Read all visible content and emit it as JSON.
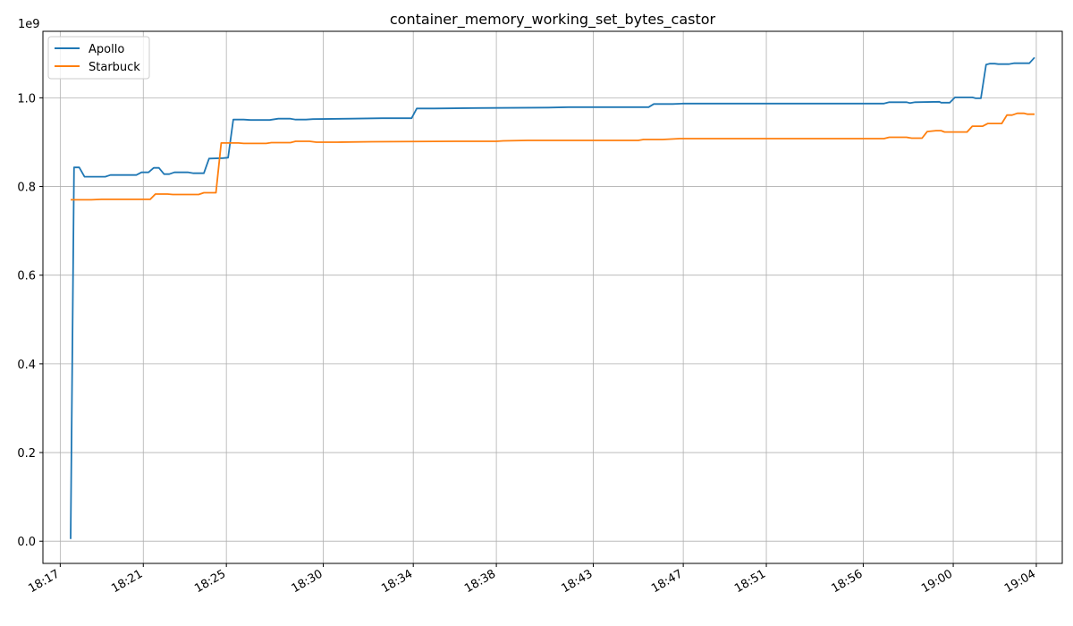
{
  "chart_data": {
    "type": "line",
    "title": "container_memory_working_set_bytes_castor",
    "xlabel": "",
    "ylabel": "",
    "y_offset_label": "1e9",
    "y_scale": 1000000000,
    "ylim": [
      -0.05,
      1.15
    ],
    "y_ticks": [
      0.0,
      0.2,
      0.4,
      0.6,
      0.8,
      1.0
    ],
    "y_tick_labels": [
      "0.0",
      "0.2",
      "0.4",
      "0.6",
      "0.8",
      "1.0"
    ],
    "xlim": [
      "18:16:10",
      "19:05:15"
    ],
    "x_ticks": [
      "18:17:00",
      "18:21:00",
      "18:25:00",
      "18:29:40",
      "18:34:00",
      "18:38:00",
      "18:42:40",
      "18:47:00",
      "18:51:00",
      "18:55:40",
      "19:00:00",
      "19:04:00"
    ],
    "x_tick_labels": [
      "18:17",
      "18:21",
      "18:25",
      "18:30",
      "18:34",
      "18:38",
      "18:43",
      "18:47",
      "18:51",
      "18:56",
      "19:00",
      "19:04"
    ],
    "grid": true,
    "legend_position": "top-left",
    "series": [
      {
        "name": "Apollo",
        "color": "#1f77b4",
        "points": [
          [
            "18:17:30",
            0.005
          ],
          [
            "18:17:40",
            0.843
          ],
          [
            "18:17:55",
            0.843
          ],
          [
            "18:18:10",
            0.822
          ],
          [
            "18:19:10",
            0.822
          ],
          [
            "18:19:25",
            0.826
          ],
          [
            "18:20:40",
            0.826
          ],
          [
            "18:20:55",
            0.832
          ],
          [
            "18:21:15",
            0.832
          ],
          [
            "18:21:30",
            0.842
          ],
          [
            "18:21:45",
            0.842
          ],
          [
            "18:22:00",
            0.828
          ],
          [
            "18:22:15",
            0.828
          ],
          [
            "18:22:30",
            0.832
          ],
          [
            "18:23:10",
            0.832
          ],
          [
            "18:23:25",
            0.83
          ],
          [
            "18:23:55",
            0.83
          ],
          [
            "18:24:10",
            0.863
          ],
          [
            "18:24:50",
            0.864
          ],
          [
            "18:25:05",
            0.865
          ],
          [
            "18:25:20",
            0.951
          ],
          [
            "18:25:50",
            0.951
          ],
          [
            "18:26:10",
            0.95
          ],
          [
            "18:27:05",
            0.95
          ],
          [
            "18:27:30",
            0.953
          ],
          [
            "18:28:05",
            0.953
          ],
          [
            "18:28:20",
            0.951
          ],
          [
            "18:28:50",
            0.951
          ],
          [
            "18:29:10",
            0.952
          ],
          [
            "18:31:00",
            0.953
          ],
          [
            "18:32:30",
            0.954
          ],
          [
            "18:33:55",
            0.954
          ],
          [
            "18:34:10",
            0.976
          ],
          [
            "18:35:00",
            0.976
          ],
          [
            "18:37:00",
            0.977
          ],
          [
            "18:40:30",
            0.978
          ],
          [
            "18:41:30",
            0.979
          ],
          [
            "18:45:20",
            0.979
          ],
          [
            "18:45:35",
            0.986
          ],
          [
            "18:46:30",
            0.986
          ],
          [
            "18:47:00",
            0.987
          ],
          [
            "18:56:40",
            0.987
          ],
          [
            "18:56:55",
            0.99
          ],
          [
            "18:57:45",
            0.99
          ],
          [
            "18:57:55",
            0.988
          ],
          [
            "18:58:10",
            0.99
          ],
          [
            "18:59:20",
            0.991
          ],
          [
            "18:59:25",
            0.989
          ],
          [
            "18:59:50",
            0.989
          ],
          [
            "19:00:05",
            1.001
          ],
          [
            "19:00:55",
            1.001
          ],
          [
            "19:01:05",
            0.999
          ],
          [
            "19:01:20",
            0.999
          ],
          [
            "19:01:35",
            1.075
          ],
          [
            "19:01:45",
            1.077
          ],
          [
            "19:02:00",
            1.077
          ],
          [
            "19:02:10",
            1.076
          ],
          [
            "19:02:40",
            1.076
          ],
          [
            "19:02:55",
            1.078
          ],
          [
            "19:03:40",
            1.078
          ],
          [
            "19:03:55",
            1.091
          ]
        ]
      },
      {
        "name": "Starbuck",
        "color": "#ff7f0e",
        "points": [
          [
            "18:17:30",
            0.77
          ],
          [
            "18:18:30",
            0.77
          ],
          [
            "18:19:00",
            0.771
          ],
          [
            "18:21:20",
            0.771
          ],
          [
            "18:21:35",
            0.783
          ],
          [
            "18:22:10",
            0.783
          ],
          [
            "18:22:25",
            0.782
          ],
          [
            "18:23:40",
            0.782
          ],
          [
            "18:23:55",
            0.786
          ],
          [
            "18:24:30",
            0.786
          ],
          [
            "18:24:45",
            0.898
          ],
          [
            "18:25:35",
            0.898
          ],
          [
            "18:25:50",
            0.897
          ],
          [
            "18:26:55",
            0.897
          ],
          [
            "18:27:10",
            0.899
          ],
          [
            "18:28:05",
            0.899
          ],
          [
            "18:28:20",
            0.902
          ],
          [
            "18:29:00",
            0.902
          ],
          [
            "18:29:20",
            0.9
          ],
          [
            "18:30:20",
            0.9
          ],
          [
            "18:32:00",
            0.901
          ],
          [
            "18:36:00",
            0.902
          ],
          [
            "18:38:00",
            0.902
          ],
          [
            "18:38:20",
            0.903
          ],
          [
            "18:39:30",
            0.904
          ],
          [
            "18:44:50",
            0.904
          ],
          [
            "18:45:05",
            0.906
          ],
          [
            "18:46:00",
            0.906
          ],
          [
            "18:46:50",
            0.908
          ],
          [
            "18:56:40",
            0.908
          ],
          [
            "18:56:55",
            0.911
          ],
          [
            "18:57:45",
            0.911
          ],
          [
            "18:58:00",
            0.909
          ],
          [
            "18:58:30",
            0.909
          ],
          [
            "18:58:45",
            0.924
          ],
          [
            "18:59:10",
            0.926
          ],
          [
            "18:59:25",
            0.926
          ],
          [
            "18:59:35",
            0.923
          ],
          [
            "19:00:40",
            0.923
          ],
          [
            "19:00:55",
            0.936
          ],
          [
            "19:01:25",
            0.936
          ],
          [
            "19:01:40",
            0.942
          ],
          [
            "19:02:20",
            0.942
          ],
          [
            "19:02:35",
            0.961
          ],
          [
            "19:02:50",
            0.961
          ],
          [
            "19:03:05",
            0.965
          ],
          [
            "19:03:25",
            0.965
          ],
          [
            "19:03:35",
            0.963
          ],
          [
            "19:03:55",
            0.963
          ]
        ]
      }
    ]
  }
}
